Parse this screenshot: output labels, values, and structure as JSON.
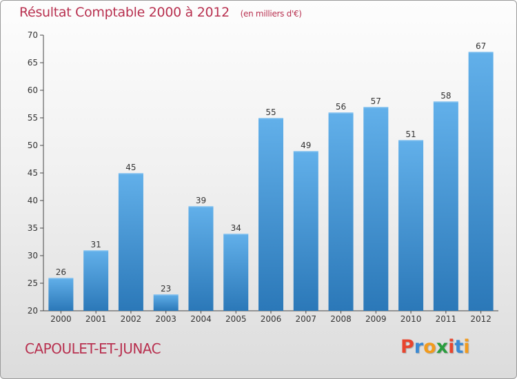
{
  "header": {
    "title": "Résultat Comptable 2000 à 2012",
    "subtitle": "(en milliers d'€)"
  },
  "commune_name": "CAPOULET-ET-JUNAC",
  "logo": {
    "letters": [
      "P",
      "r",
      "o",
      "x",
      "i",
      "t",
      "i"
    ],
    "colors": [
      "#e8452e",
      "#3b8ad4",
      "#f29b1d",
      "#2a9d3e",
      "#e8452e",
      "#3b8ad4",
      "#f29b1d"
    ]
  },
  "colors": {
    "bar_light": "#62b0ea",
    "bar_dark": "#2b78b8",
    "title": "#b8304f"
  },
  "chart_data": {
    "type": "bar",
    "title": "Résultat Comptable 2000 à 2012",
    "xlabel": "",
    "ylabel": "",
    "categories": [
      "2000",
      "2001",
      "2002",
      "2003",
      "2004",
      "2005",
      "2006",
      "2007",
      "2008",
      "2009",
      "2010",
      "2011",
      "2012"
    ],
    "values": [
      26,
      31,
      45,
      23,
      39,
      34,
      55,
      49,
      56,
      57,
      51,
      58,
      67
    ],
    "ylim": [
      20,
      70
    ],
    "yticks": [
      20,
      25,
      30,
      35,
      40,
      45,
      50,
      55,
      60,
      65,
      70
    ],
    "grid": false
  }
}
